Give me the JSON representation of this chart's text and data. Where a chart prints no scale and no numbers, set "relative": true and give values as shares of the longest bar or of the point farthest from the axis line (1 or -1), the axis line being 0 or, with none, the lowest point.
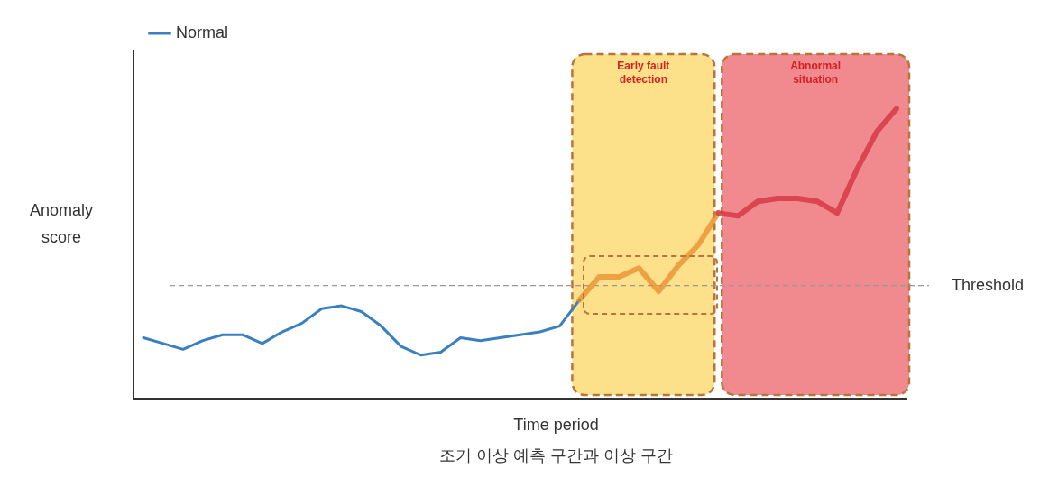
{
  "chart_data": {
    "type": "line",
    "relative": true,
    "xlabel": "Time period",
    "ylabel": "Anomaly score",
    "categories": [
      null,
      null,
      null,
      null,
      null,
      null,
      null,
      null,
      null,
      null,
      null,
      null,
      null,
      null,
      null,
      null,
      null,
      null,
      null,
      null,
      null,
      null,
      null,
      null,
      null,
      null,
      null,
      null,
      null,
      null,
      null,
      null,
      null,
      null,
      null,
      null,
      null,
      null,
      null
    ],
    "series": [
      {
        "name": "Normal",
        "color": "#3a80c0",
        "values": [
          0.21,
          0.19,
          0.17,
          0.2,
          0.22,
          0.22,
          0.19,
          0.23,
          0.26,
          0.31,
          0.32,
          0.3,
          0.25,
          0.18,
          0.15,
          0.16,
          0.21,
          0.2,
          0.21,
          0.22,
          0.23,
          0.25,
          0.34,
          null,
          null,
          null,
          null,
          null,
          null,
          null,
          null,
          null,
          null,
          null,
          null,
          null,
          null,
          null,
          null
        ]
      },
      {
        "color": "#e8892a",
        "values": [
          null,
          null,
          null,
          null,
          null,
          null,
          null,
          null,
          null,
          null,
          null,
          null,
          null,
          null,
          null,
          null,
          null,
          null,
          null,
          null,
          null,
          null,
          0.34,
          0.42,
          0.42,
          0.45,
          0.37,
          0.46,
          0.53,
          0.64,
          null,
          null,
          null,
          null,
          null,
          null,
          null,
          null,
          null
        ]
      },
      {
        "color": "#d42a3a",
        "values": [
          null,
          null,
          null,
          null,
          null,
          null,
          null,
          null,
          null,
          null,
          null,
          null,
          null,
          null,
          null,
          null,
          null,
          null,
          null,
          null,
          null,
          null,
          null,
          null,
          null,
          null,
          null,
          null,
          null,
          0.64,
          0.63,
          0.68,
          0.69,
          0.69,
          0.68,
          0.64,
          0.79,
          0.92,
          1
        ]
      }
    ],
    "ref_lines": [
      {
        "axis": "y",
        "value": 0.39,
        "label": "Threshold",
        "color": "#999999",
        "line_style": "dashed"
      }
    ],
    "annotations": [
      "Early fault detection",
      "Abnormal situation",
      "조기 이상 예측 구간과 이상 구간"
    ],
    "legend": "top left",
    "grid": false,
    "marker": "none"
  }
}
